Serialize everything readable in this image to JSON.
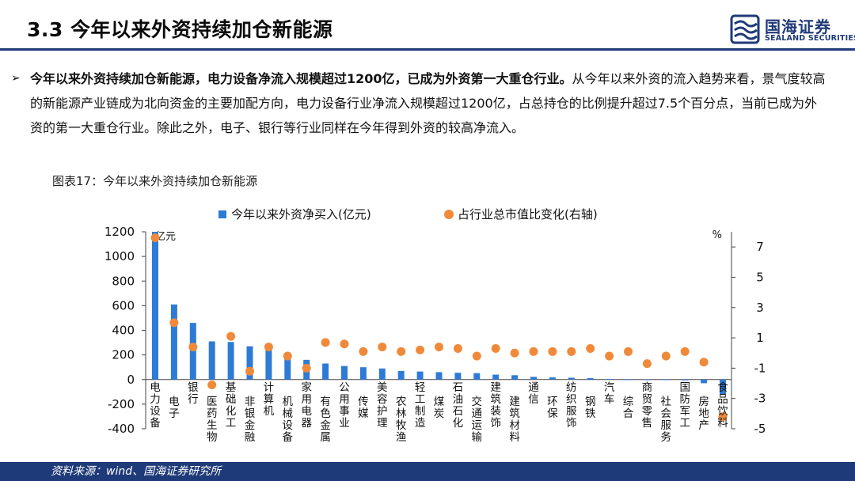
{
  "header": {
    "title": "3.3 今年以来外资持续加仓新能源",
    "logo_cn": "国海证券",
    "logo_en": "SEALAND SECURITIES"
  },
  "bullet": {
    "bold": "今年以来外资持续加仓新能源，电力设备净流入规模超过1200亿，已成为外资第一大重仓行业。",
    "normal": "从今年以来外资的流入趋势来看，景气度较高的新能源产业链成为北向资金的主要加配方向，电力设备行业净流入规模超过1200亿，占总持仓的比例提升超过7.5个百分点，当前已成为外资的第一大重仓行业。除此之外，电子、银行等行业同样在今年得到外资的较高净流入。"
  },
  "chart_caption": "图表17：今年以来外资持续加仓新能源",
  "footer": {
    "source": "资料来源：wind、国海证券研究所"
  },
  "chart_data": {
    "type": "bar",
    "legend_position": "top",
    "grid": false,
    "y_left_unit": "亿元",
    "y_right_unit": "%",
    "ylim_left": [
      -400,
      1200
    ],
    "ylim_right": [
      -5,
      8
    ],
    "yticks_left": [
      -400,
      -200,
      0,
      200,
      400,
      600,
      800,
      1000,
      1200
    ],
    "yticks_right": [
      -5,
      -3,
      -1,
      1,
      3,
      5,
      7
    ],
    "categories": [
      "电力设备",
      "电子",
      "银行",
      "医药生物",
      "基础化工",
      "非银金融",
      "计算机",
      "机械设备",
      "家用电器",
      "有色金属",
      "公用事业",
      "传媒",
      "美容护理",
      "农林牧渔",
      "轻工制造",
      "煤炭",
      "石油石化",
      "交通运输",
      "建筑装饰",
      "建筑材料",
      "通信",
      "环保",
      "纺织服饰",
      "钢铁",
      "汽车",
      "综合",
      "商贸零售",
      "社会服务",
      "国防军工",
      "房地产",
      "食品饮料"
    ],
    "series": [
      {
        "name": "今年以来外资净买入(亿元)",
        "kind": "bar",
        "axis": "left",
        "color": "#2e7bd6",
        "values": [
          1200,
          610,
          460,
          310,
          305,
          270,
          240,
          200,
          160,
          130,
          110,
          100,
          90,
          70,
          65,
          60,
          55,
          52,
          40,
          35,
          22,
          18,
          15,
          12,
          5,
          3,
          2,
          2,
          -5,
          -30,
          -120
        ]
      },
      {
        "name": "占行业总市值比变化(右轴)",
        "kind": "scatter",
        "axis": "right",
        "color": "#f08a3a",
        "values": [
          7.6,
          2.0,
          0.4,
          -2.1,
          1.1,
          -1.2,
          0.4,
          -0.2,
          -1.0,
          0.7,
          0.6,
          0.1,
          0.4,
          0.1,
          0.2,
          0.4,
          0.3,
          -0.2,
          0.3,
          0.0,
          0.1,
          0.1,
          0.1,
          0.3,
          -0.2,
          0.1,
          -0.7,
          -0.2,
          0.1,
          -0.6,
          -4.2
        ]
      }
    ]
  }
}
